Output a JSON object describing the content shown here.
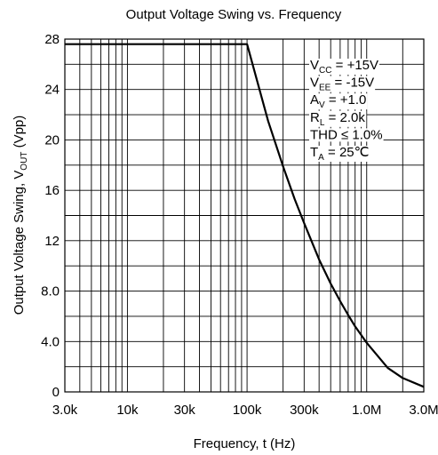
{
  "chart_data": {
    "type": "line",
    "title": "Output Voltage Swing vs. Frequency",
    "xlabel": "Frequency, t (Hz)",
    "ylabel": {
      "pre": "Output Voltage Swing, V",
      "sub": "OUT",
      "post": " (Vpp)"
    },
    "x_scale": "log",
    "xlim": [
      3000,
      3000000
    ],
    "ylim": [
      0,
      28
    ],
    "x_ticks": [
      {
        "value": 3000,
        "label": "3.0k"
      },
      {
        "value": 10000,
        "label": "10k"
      },
      {
        "value": 30000,
        "label": "30k"
      },
      {
        "value": 100000,
        "label": "100k"
      },
      {
        "value": 300000,
        "label": "300k"
      },
      {
        "value": 1000000,
        "label": "1.0M"
      },
      {
        "value": 3000000,
        "label": "3.0M"
      }
    ],
    "y_ticks": [
      {
        "value": 0,
        "label": "0"
      },
      {
        "value": 4,
        "label": "4.0"
      },
      {
        "value": 8,
        "label": "8.0"
      },
      {
        "value": 12,
        "label": "12"
      },
      {
        "value": 16,
        "label": "16"
      },
      {
        "value": 20,
        "label": "20"
      },
      {
        "value": 24,
        "label": "24"
      },
      {
        "value": 28,
        "label": "28"
      }
    ],
    "grid": true,
    "series": [
      {
        "x": [
          3000,
          10000,
          30000,
          70000,
          100000,
          150000,
          200000,
          250000,
          300000,
          400000,
          500000,
          600000,
          700000,
          800000,
          1000000,
          1500000,
          2000000,
          3000000
        ],
        "y": [
          27.6,
          27.6,
          27.6,
          27.6,
          27.6,
          21.5,
          17.9,
          15.3,
          13.4,
          10.5,
          8.6,
          7.2,
          6.1,
          5.2,
          3.9,
          1.9,
          1.1,
          0.4
        ]
      }
    ],
    "annotations": [
      {
        "pre": "V",
        "sub": "CC",
        "post": " = +15V"
      },
      {
        "pre": "V",
        "sub": "EE",
        "post": " = -15V"
      },
      {
        "pre": "A",
        "sub": "V",
        "post": " = +1.0"
      },
      {
        "pre": "R",
        "sub": "L",
        "post": " = 2.0k"
      },
      {
        "pre": "THD ≤ 1.0%",
        "sub": "",
        "post": ""
      },
      {
        "pre": "T",
        "sub": "A",
        "post": " = 25℃"
      }
    ]
  }
}
